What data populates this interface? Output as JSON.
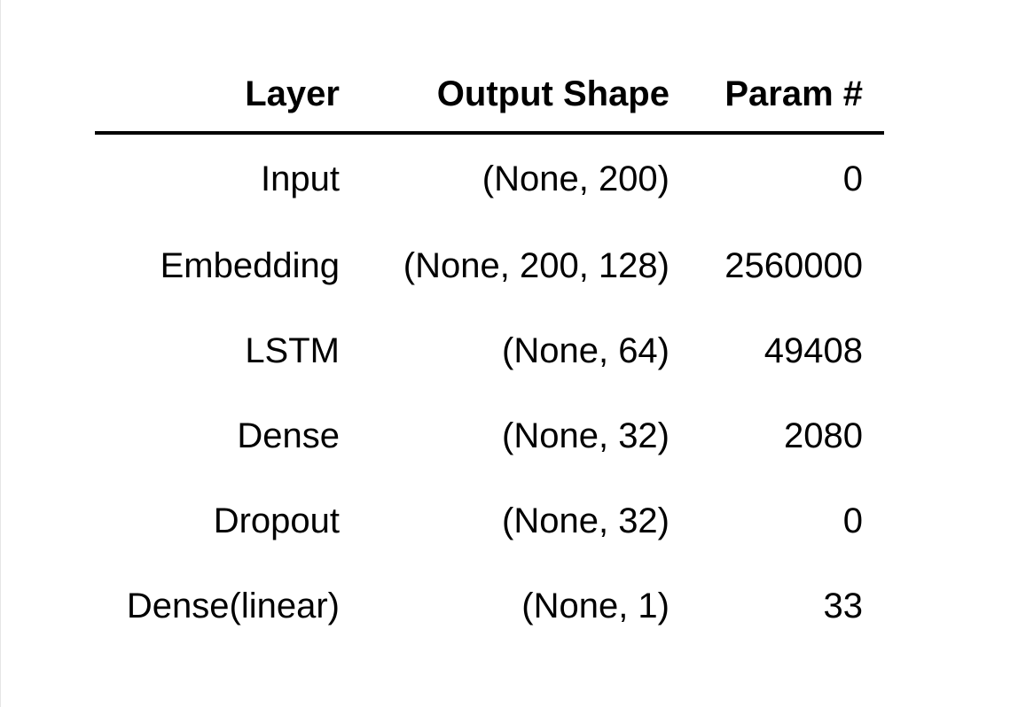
{
  "table": {
    "headers": {
      "layer": "Layer",
      "output_shape": "Output Shape",
      "param": "Param #"
    },
    "rows": [
      {
        "layer": "Input",
        "output_shape": "(None, 200)",
        "param": "0"
      },
      {
        "layer": "Embedding",
        "output_shape": "(None, 200, 128)",
        "param": "2560000"
      },
      {
        "layer": "LSTM",
        "output_shape": "(None, 64)",
        "param": "49408"
      },
      {
        "layer": "Dense",
        "output_shape": "(None, 32)",
        "param": "2080"
      },
      {
        "layer": "Dropout",
        "output_shape": "(None, 32)",
        "param": "0"
      },
      {
        "layer": "Dense(linear)",
        "output_shape": "(None, 1)",
        "param": "33"
      }
    ]
  }
}
